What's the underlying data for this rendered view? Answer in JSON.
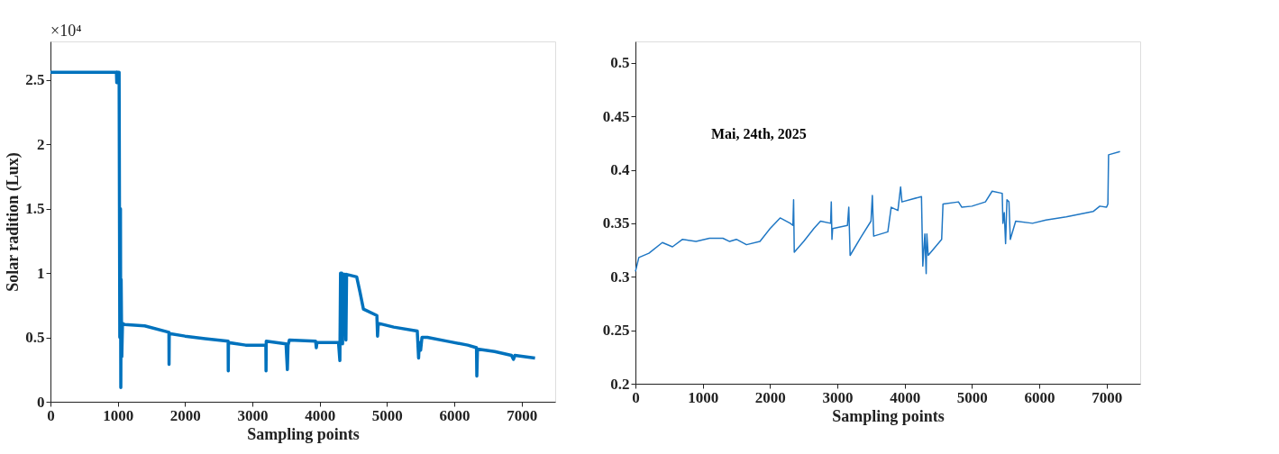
{
  "chart_data": [
    {
      "type": "line",
      "xlabel": "Sampling points",
      "ylabel": "Solar radition (Lux)",
      "annotations": [
        "×10⁴"
      ],
      "xlim": [
        0,
        7500
      ],
      "xticks": [
        0,
        1000,
        2000,
        3000,
        4000,
        5000,
        6000,
        7000
      ],
      "ylim": [
        0,
        2.8
      ],
      "yticks": [
        0,
        0.5,
        1,
        1.5,
        2,
        2.5
      ],
      "grid": false,
      "x": [
        0,
        980,
        985,
        990,
        1020,
        1030,
        1040,
        1045,
        1050,
        1060,
        1070,
        1100,
        1400,
        1760,
        1762,
        1765,
        2000,
        2300,
        2640,
        2642,
        2645,
        2900,
        3200,
        3203,
        3206,
        3500,
        3520,
        3530,
        3550,
        3940,
        3950,
        3960,
        4280,
        4300,
        4310,
        4330,
        4340,
        4360,
        4380,
        4390,
        4400,
        4550,
        4600,
        4650,
        4850,
        4860,
        4870,
        5100,
        5450,
        5470,
        5480,
        5500,
        5520,
        5600,
        5900,
        6200,
        6330,
        6335,
        6345,
        6600,
        6850,
        6880,
        6900,
        7200
      ],
      "series": [
        {
          "color": "#0072bd",
          "values": [
            2.56,
            2.56,
            2.48,
            2.56,
            2.56,
            0.5,
            1.5,
            0.11,
            0.95,
            0.35,
            0.61,
            0.6,
            0.59,
            0.54,
            0.29,
            0.53,
            0.51,
            0.49,
            0.47,
            0.24,
            0.46,
            0.44,
            0.44,
            0.24,
            0.47,
            0.45,
            0.25,
            0.44,
            0.48,
            0.47,
            0.42,
            0.46,
            0.46,
            0.32,
            1.0,
            1.0,
            0.45,
            0.99,
            0.99,
            0.48,
            0.99,
            0.97,
            0.85,
            0.72,
            0.67,
            0.51,
            0.61,
            0.58,
            0.55,
            0.34,
            0.46,
            0.4,
            0.5,
            0.5,
            0.47,
            0.44,
            0.42,
            0.2,
            0.41,
            0.39,
            0.36,
            0.33,
            0.36,
            0.34
          ]
        }
      ]
    },
    {
      "type": "line",
      "xlabel": "Sampling points",
      "annotations": [
        "Mai, 24th, 2025"
      ],
      "xlim": [
        0,
        7500
      ],
      "xticks": [
        0,
        1000,
        2000,
        3000,
        4000,
        5000,
        6000,
        7000
      ],
      "ylim": [
        0.2,
        0.52
      ],
      "yticks": [
        0.2,
        0.25,
        0.3,
        0.35,
        0.4,
        0.45,
        0.5
      ],
      "grid": false,
      "x": [
        0,
        50,
        200,
        400,
        550,
        700,
        900,
        1100,
        1300,
        1400,
        1500,
        1650,
        1850,
        2000,
        2150,
        2300,
        2340,
        2350,
        2360,
        2500,
        2650,
        2750,
        2900,
        2910,
        2920,
        2930,
        3150,
        3170,
        3190,
        3350,
        3500,
        3520,
        3540,
        3750,
        3800,
        3900,
        3940,
        3960,
        4250,
        4270,
        4300,
        4320,
        4330,
        4350,
        4550,
        4570,
        4800,
        4850,
        5000,
        5200,
        5300,
        5450,
        5460,
        5480,
        5500,
        5520,
        5550,
        5570,
        5650,
        5900,
        6100,
        6400,
        6800,
        6900,
        7000,
        7020,
        7030,
        7200
      ],
      "series": [
        {
          "color": "#1f77c4",
          "values": [
            0.305,
            0.318,
            0.322,
            0.332,
            0.328,
            0.335,
            0.333,
            0.336,
            0.336,
            0.333,
            0.335,
            0.33,
            0.333,
            0.345,
            0.355,
            0.35,
            0.348,
            0.372,
            0.323,
            0.333,
            0.345,
            0.352,
            0.35,
            0.37,
            0.335,
            0.345,
            0.348,
            0.365,
            0.32,
            0.337,
            0.352,
            0.376,
            0.338,
            0.342,
            0.365,
            0.362,
            0.384,
            0.37,
            0.375,
            0.31,
            0.34,
            0.303,
            0.34,
            0.32,
            0.335,
            0.368,
            0.37,
            0.365,
            0.366,
            0.37,
            0.38,
            0.378,
            0.35,
            0.36,
            0.331,
            0.372,
            0.37,
            0.335,
            0.352,
            0.35,
            0.353,
            0.356,
            0.361,
            0.366,
            0.365,
            0.368,
            0.414,
            0.417
          ]
        }
      ]
    }
  ]
}
